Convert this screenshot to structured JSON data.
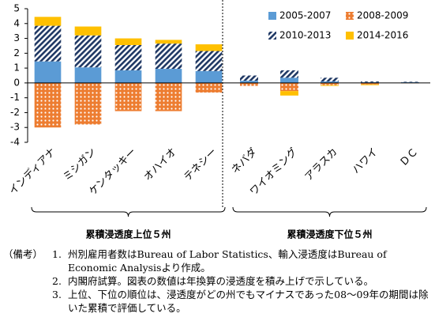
{
  "chart_data": {
    "type": "bar",
    "stacked": true,
    "categories": [
      "インディアナ",
      "ミシガン",
      "ケンタッキー",
      "オハイオ",
      "テネシー",
      "ネバダ",
      "ワイオミング",
      "アラスカ",
      "ハワイ",
      "ＤＣ"
    ],
    "series": [
      {
        "name": "2005-2007",
        "color": "#5b9bd5",
        "pattern": "solid",
        "values": [
          1.45,
          1.05,
          0.85,
          0.95,
          0.8,
          0.15,
          0.35,
          0.1,
          0.05,
          0.05
        ]
      },
      {
        "name": "2008-2009",
        "color": "#ed7d31",
        "pattern": "dots",
        "values": [
          -3.0,
          -2.8,
          -1.9,
          -1.9,
          -0.65,
          -0.2,
          -0.55,
          -0.15,
          -0.1,
          -0.02
        ]
      },
      {
        "name": "2010-2013",
        "color": "#1f3864",
        "pattern": "hatch",
        "values": [
          2.4,
          2.15,
          1.7,
          1.7,
          1.35,
          0.35,
          0.5,
          0.25,
          0.05,
          0.03
        ]
      },
      {
        "name": "2014-2016",
        "color": "#ffc000",
        "pattern": "solid",
        "values": [
          0.6,
          0.6,
          0.45,
          0.25,
          0.45,
          0,
          -0.3,
          -0.05,
          -0.05,
          0
        ]
      }
    ],
    "ylim": [
      -4,
      5
    ],
    "yticks": [
      -4,
      -3,
      -2,
      -1,
      0,
      1,
      2,
      3,
      4,
      5
    ],
    "groups": [
      {
        "label": "累積浸透度上位５州",
        "from": 0,
        "to": 4
      },
      {
        "label": "累積浸透度下位５州",
        "from": 5,
        "to": 9
      }
    ]
  },
  "notes": {
    "label": "（備考）",
    "items": [
      {
        "number": "1.",
        "text": "州別雇用者数はBureau of Labor Statistics、輸入浸透度はBureau of Economic Analysisより作成。"
      },
      {
        "number": "2.",
        "text": "内閣府試算。図表の数値は年換算の浸透度を積み上げで示している。"
      },
      {
        "number": "3.",
        "text": "上位、下位の順位は、浸透度がどの州でもマイナスであった08～09年の期間は除いた累積で評価している。"
      }
    ]
  }
}
